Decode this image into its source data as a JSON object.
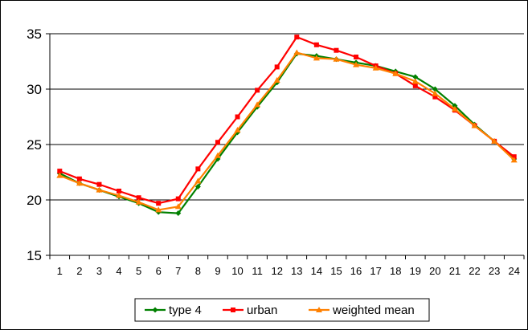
{
  "chart_data": {
    "type": "line",
    "title": "",
    "xlabel": "",
    "ylabel": "",
    "x": [
      1,
      2,
      3,
      4,
      5,
      6,
      7,
      8,
      9,
      10,
      11,
      12,
      13,
      14,
      15,
      16,
      17,
      18,
      19,
      20,
      21,
      22,
      23,
      24
    ],
    "ylim": [
      15,
      35
    ],
    "yticks": [
      15,
      20,
      25,
      30,
      35
    ],
    "grid": true,
    "legend_position": "bottom",
    "series": [
      {
        "name": "type 4",
        "color": "#008000",
        "marker": "diamond",
        "values": [
          22.4,
          21.5,
          20.9,
          20.3,
          19.7,
          18.9,
          18.8,
          21.2,
          23.7,
          26.1,
          28.4,
          30.6,
          33.2,
          33.0,
          32.7,
          32.4,
          32.1,
          31.6,
          31.1,
          30.0,
          28.5,
          26.8,
          25.3,
          23.7
        ]
      },
      {
        "name": "urban",
        "color": "#ff0000",
        "marker": "square",
        "values": [
          22.6,
          21.9,
          21.4,
          20.8,
          20.2,
          19.7,
          20.1,
          22.8,
          25.2,
          27.5,
          29.9,
          32.0,
          34.7,
          34.0,
          33.5,
          32.9,
          32.1,
          31.4,
          30.3,
          29.3,
          28.1,
          26.7,
          25.3,
          23.9
        ]
      },
      {
        "name": "weighted mean",
        "color": "#ff8000",
        "marker": "triangle",
        "values": [
          22.2,
          21.5,
          20.9,
          20.4,
          19.8,
          19.1,
          19.4,
          21.7,
          24.0,
          26.3,
          28.6,
          30.8,
          33.3,
          32.8,
          32.7,
          32.2,
          31.9,
          31.4,
          30.7,
          29.6,
          28.2,
          26.7,
          25.3,
          23.6
        ]
      }
    ]
  }
}
